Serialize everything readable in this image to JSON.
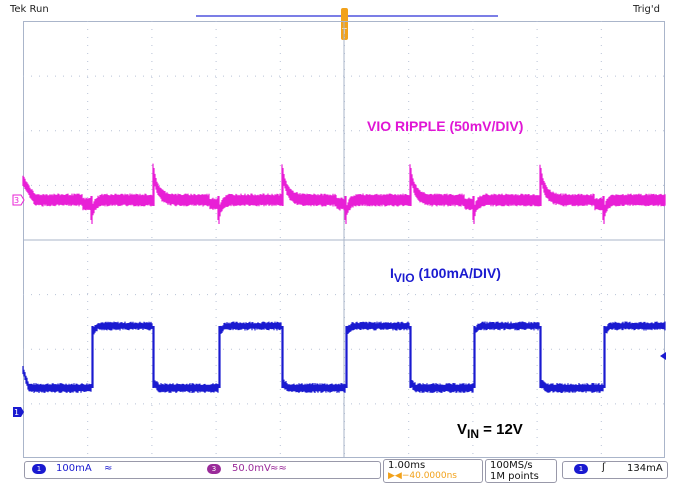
{
  "header": {
    "status_left": "Tek Run",
    "status_right": "Trig'd",
    "trigger_marker": "T"
  },
  "annotations": {
    "ripple_label": "VIO RIPPLE (50mV/DIV)",
    "ivio_main": "I",
    "ivio_sub": "VIO",
    "ivio_rest": " (100mA/DIV)",
    "vin_main": "V",
    "vin_sub": "IN",
    "vin_rest": " = 12V"
  },
  "channels": [
    {
      "marker": "3",
      "color": "#e81fd6"
    },
    {
      "marker": "1",
      "color": "#1a1ad0"
    }
  ],
  "status_bar": {
    "ch1_num": "1",
    "ch1_scale": "100mA",
    "ch1_coupling": "≈",
    "ch3_num": "3",
    "ch3_scale": "50.0mV",
    "ch3_coupling": "≈≈",
    "timebase": "1.00ms",
    "delay": "▶◀−40.0000ns",
    "sample_rate": "100MS/s",
    "record_length": "1M points",
    "trig_ch": "1",
    "trig_slope": "ʃ",
    "trig_level": "134mA"
  },
  "colors": {
    "ch1": "#1a1ad0",
    "ch3": "#e81fd6",
    "trigger": "#f2a21b",
    "grid": "#aab5ca"
  }
}
